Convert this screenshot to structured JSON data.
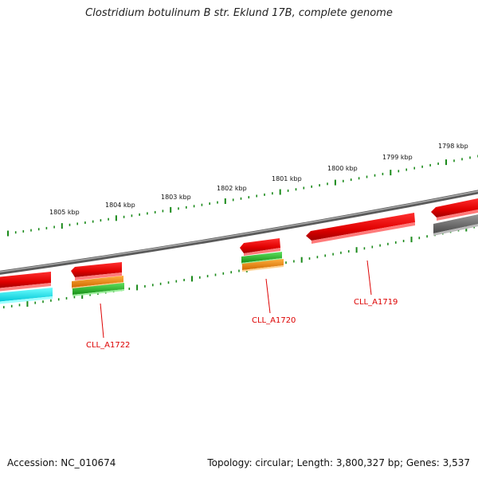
{
  "title": "Clostridium botulinum B str. Eklund 17B, complete genome",
  "footer": {
    "accession": "Accession: NC_010674",
    "summary": "Topology: circular; Length: 3,800,327 bp; Genes: 3,537"
  },
  "ruler": {
    "tick_color": "#1a8a1a",
    "labels": [
      "1805 kbp",
      "1804 kbp",
      "1803 kbp",
      "1802 kbp",
      "1801 kbp",
      "1800 kbp",
      "1799 kbp",
      "1798 kbp"
    ]
  },
  "backbone_color": "#7a7a7a",
  "gene_labels": [
    {
      "text": "CLL_A1722",
      "color": "#dd0000"
    },
    {
      "text": "CLL_A1720",
      "color": "#dd0000"
    },
    {
      "text": "CLL_A1719",
      "color": "#dd0000"
    }
  ],
  "colors": {
    "red": "#e80000",
    "orange": "#f08000",
    "green": "#22bb22",
    "cyan": "#00e5f0",
    "gray": "#666666"
  }
}
